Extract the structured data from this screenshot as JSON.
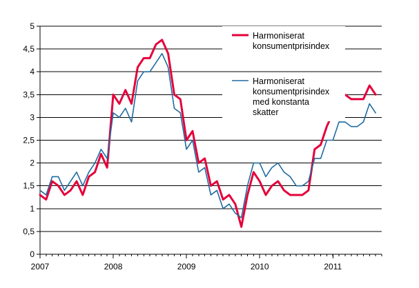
{
  "chart_data": {
    "type": "line",
    "title": "",
    "xlabel": "",
    "ylabel": "",
    "ylim": [
      0,
      5
    ],
    "xlim": [
      2007.0,
      2011.667
    ],
    "grid": "horizontal",
    "legend_placement": "top-right",
    "y_ticks": [
      {
        "value": 0,
        "label": "0"
      },
      {
        "value": 0.5,
        "label": "0,5"
      },
      {
        "value": 1,
        "label": "1"
      },
      {
        "value": 1.5,
        "label": "1,5"
      },
      {
        "value": 2,
        "label": "2"
      },
      {
        "value": 2.5,
        "label": "2,5"
      },
      {
        "value": 3,
        "label": "3"
      },
      {
        "value": 3.5,
        "label": "3,5"
      },
      {
        "value": 4,
        "label": "4"
      },
      {
        "value": 4.5,
        "label": "4,5"
      },
      {
        "value": 5,
        "label": "5"
      }
    ],
    "x_ticks": [
      {
        "value": 2007,
        "label": "2007"
      },
      {
        "value": 2008,
        "label": "2008"
      },
      {
        "value": 2009,
        "label": "2009"
      },
      {
        "value": 2010,
        "label": "2010"
      },
      {
        "value": 2011,
        "label": "2011"
      }
    ],
    "x_start": 2007.0,
    "x_step": 0.08333,
    "series": [
      {
        "name_lines": [
          "Harmoniserat",
          "konsumentprisindex"
        ],
        "color": "#e4003a",
        "values": [
          1.3,
          1.2,
          1.6,
          1.5,
          1.3,
          1.4,
          1.6,
          1.3,
          1.7,
          1.8,
          2.2,
          1.9,
          3.5,
          3.3,
          3.6,
          3.3,
          4.1,
          4.3,
          4.3,
          4.6,
          4.7,
          4.4,
          3.5,
          3.4,
          2.5,
          2.7,
          2.0,
          2.1,
          1.5,
          1.6,
          1.2,
          1.3,
          1.1,
          0.6,
          1.3,
          1.8,
          1.6,
          1.3,
          1.5,
          1.6,
          1.4,
          1.3,
          1.3,
          1.3,
          1.4,
          2.3,
          2.4,
          2.8,
          3.1,
          3.5,
          3.5,
          3.4,
          3.4,
          3.4,
          3.7,
          3.5
        ]
      },
      {
        "name_lines": [
          "Harmoniserat",
          "konsumentprisindex",
          "med konstanta",
          "skatter"
        ],
        "color": "#1f6aa0",
        "values": [
          1.4,
          1.3,
          1.7,
          1.7,
          1.4,
          1.6,
          1.8,
          1.5,
          1.8,
          2.0,
          2.3,
          2.1,
          3.1,
          3.0,
          3.2,
          2.9,
          3.8,
          4.0,
          4.0,
          4.2,
          4.4,
          4.1,
          3.2,
          3.1,
          2.3,
          2.5,
          1.8,
          1.9,
          1.3,
          1.4,
          1.0,
          1.1,
          0.9,
          0.8,
          1.5,
          2.0,
          2.0,
          1.7,
          1.9,
          2.0,
          1.8,
          1.7,
          1.5,
          1.5,
          1.6,
          2.1,
          2.1,
          2.5,
          2.5,
          2.9,
          2.9,
          2.8,
          2.8,
          2.9,
          3.3,
          3.1
        ]
      }
    ]
  }
}
